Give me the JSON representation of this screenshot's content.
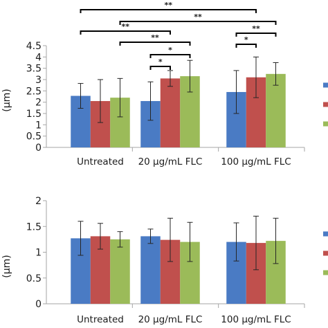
{
  "colors": {
    "series": [
      "#4a7bc4",
      "#c0504d",
      "#9bbb59"
    ],
    "axis": "#a6a6a6",
    "error_bar": "#262626",
    "bracket": "#000000"
  },
  "chart_data": [
    {
      "type": "bar",
      "ylabel": "(μm)",
      "ylim": [
        0,
        4.5
      ],
      "yticks": [
        0,
        0.5,
        1,
        1.5,
        2,
        2.5,
        3,
        3.5,
        4,
        4.5
      ],
      "ytick_labels": [
        "0",
        "0.5",
        "1",
        "1.5",
        "2",
        "2.5",
        "3",
        "3.5",
        "4",
        "4.5"
      ],
      "categories": [
        "Untreated",
        "20 μg/mL FLC",
        "100 μg/mL FLC"
      ],
      "grid": false,
      "legend": "right (cropped)",
      "series": [
        {
          "values": [
            2.28,
            2.05,
            2.45
          ],
          "errors": [
            0.55,
            0.85,
            0.95
          ]
        },
        {
          "values": [
            2.05,
            3.05,
            3.1
          ],
          "errors": [
            0.95,
            0.35,
            0.9
          ]
        },
        {
          "values": [
            2.2,
            3.15,
            3.25
          ],
          "errors": [
            0.85,
            0.7,
            0.5
          ]
        }
      ],
      "annotations": [
        {
          "label": "**",
          "from_category": 0,
          "from_series": 0,
          "to_category": 2,
          "to_series": 1
        },
        {
          "label": "**",
          "from_category": 0,
          "from_series": 2,
          "to_category": 2,
          "to_series": 2
        },
        {
          "label": "**",
          "from_category": 0,
          "from_series": 0,
          "to_category": 1,
          "to_series": 1
        },
        {
          "label": "**",
          "from_category": 0,
          "from_series": 2,
          "to_category": 1,
          "to_series": 2
        },
        {
          "label": "*",
          "from_category": 1,
          "from_series": 0,
          "to_category": 1,
          "to_series": 2
        },
        {
          "label": "*",
          "from_category": 1,
          "from_series": 0,
          "to_category": 1,
          "to_series": 1
        },
        {
          "label": "**",
          "from_category": 2,
          "from_series": 0,
          "to_category": 2,
          "to_series": 2
        },
        {
          "label": "*",
          "from_category": 2,
          "from_series": 0,
          "to_category": 2,
          "to_series": 1
        }
      ]
    },
    {
      "type": "bar",
      "ylabel": "(μm)",
      "ylim": [
        0,
        2
      ],
      "yticks": [
        0,
        0.5,
        1,
        1.5,
        2
      ],
      "ytick_labels": [
        "0",
        "0.5",
        "1",
        "1.5",
        "2"
      ],
      "categories": [
        "Untreated",
        "20 μg/mL FLC",
        "100 μg/mL FLC"
      ],
      "grid": false,
      "legend": "right (cropped)",
      "series": [
        {
          "values": [
            1.27,
            1.31,
            1.2
          ],
          "errors": [
            0.33,
            0.14,
            0.37
          ]
        },
        {
          "values": [
            1.31,
            1.24,
            1.18
          ],
          "errors": [
            0.25,
            0.42,
            0.52
          ]
        },
        {
          "values": [
            1.25,
            1.2,
            1.22
          ],
          "errors": [
            0.15,
            0.38,
            0.44
          ]
        }
      ],
      "annotations": []
    }
  ]
}
